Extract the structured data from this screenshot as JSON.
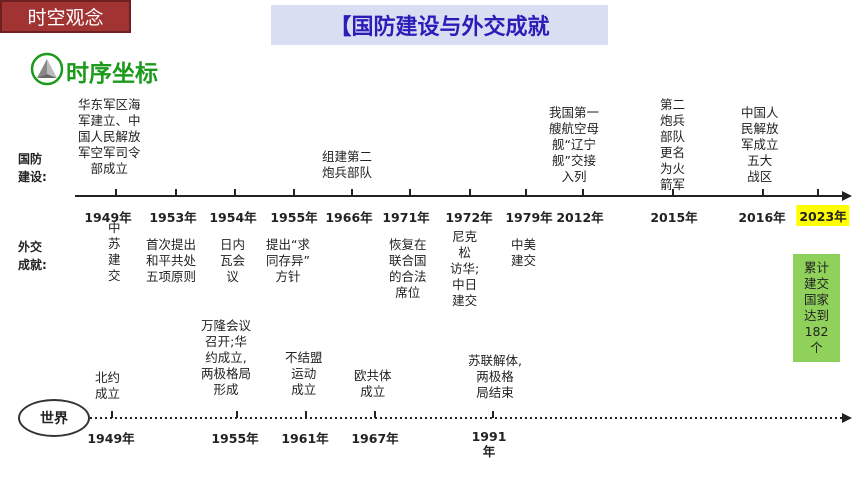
{
  "badge": "时空观念",
  "banner": "【国防建设与外交成就",
  "subheading": "时序坐标",
  "row_labels": {
    "defense": "国防\n建设:",
    "diplomacy": "外交\n成就:"
  },
  "timeline_years": [
    "1949年",
    "1953年",
    "1954年",
    "1955年",
    "1966年",
    "1971年",
    "1972年",
    "1979年",
    "2012年",
    "2015年",
    "2016年",
    "2023年"
  ],
  "defense_events": [
    "华东军区海\n军建立、中\n国人民解放\n军空军司令\n部成立",
    "组建第二\n炮兵部队",
    "我国第一\n艘航空母\n舰“辽宁\n舰”交接\n入列",
    "第二\n炮兵\n部队\n更名\n为火\n箭军",
    "中国人\n民解放\n军成立\n五大\n战区"
  ],
  "diplomacy_events": [
    "中\n苏\n建\n交",
    "首次提出\n和平共处\n五项原则",
    "日内\n瓦会\n议",
    "提出“求\n同存异”\n方针",
    "恢复在\n联合国\n的合法\n席位",
    "尼克\n松\n访华;\n中日\n建交",
    "中美\n建交",
    "累计\n建交\n国家\n达到\n182\n个"
  ],
  "world_label": "世界",
  "world_events": [
    {
      "year": "1949年",
      "text": "北约\n成立"
    },
    {
      "year": "1955年",
      "text": "万隆会议\n召开;华\n约成立,\n两极格局\n形成"
    },
    {
      "year": "1961年",
      "text": "不结盟\n运动\n成立"
    },
    {
      "year": "1967年",
      "text": "欧共体\n成立"
    },
    {
      "year": "1991\n年",
      "text": "苏联解体,\n两极格\n局结束"
    }
  ],
  "colors": {
    "badge_bg": "#a23333",
    "banner_bg": "#d9def3",
    "banner_text": "#2b1db8",
    "subhead": "#1b9a1b",
    "highlight_year": "#ffff00",
    "green_box": "#8fd15a"
  }
}
